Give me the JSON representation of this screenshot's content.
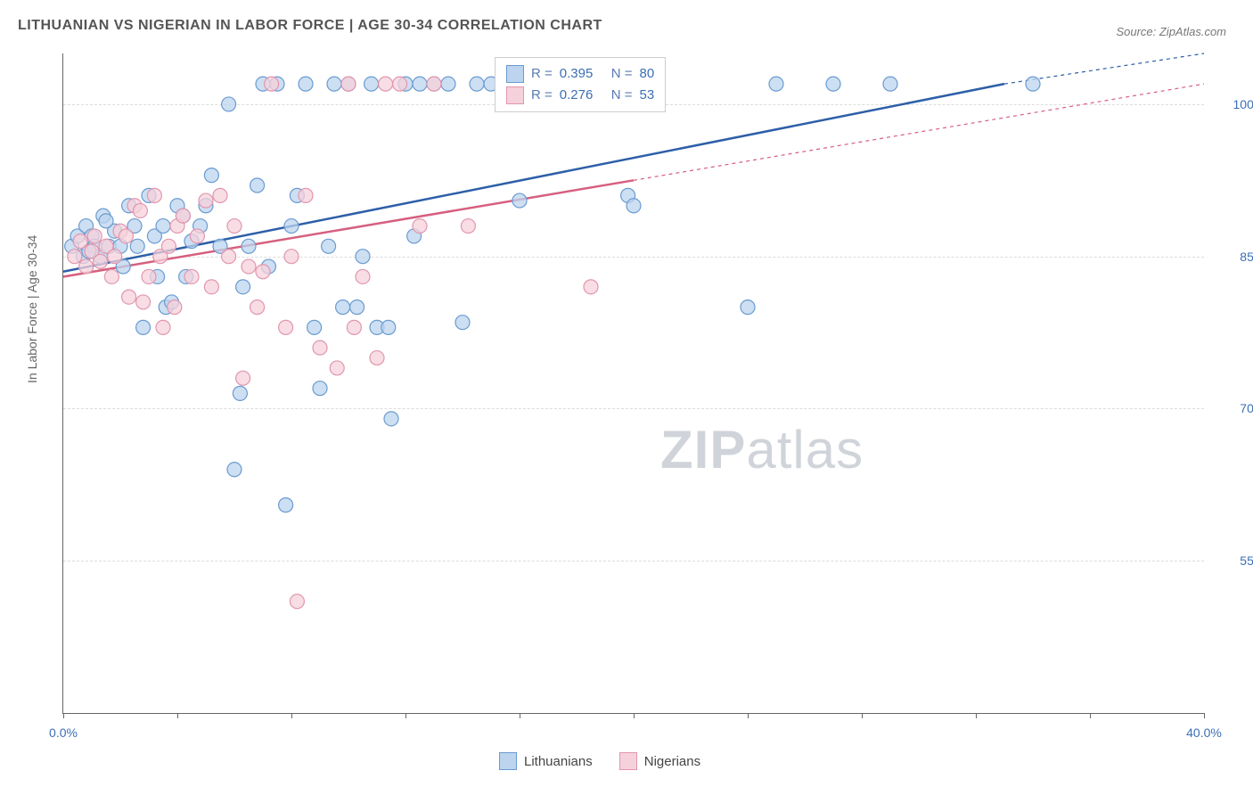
{
  "title": "LITHUANIAN VS NIGERIAN IN LABOR FORCE | AGE 30-34 CORRELATION CHART",
  "source": "Source: ZipAtlas.com",
  "y_axis_label": "In Labor Force | Age 30-34",
  "watermark_bold": "ZIP",
  "watermark_light": "atlas",
  "chart": {
    "type": "scatter",
    "xlim": [
      0,
      40
    ],
    "ylim": [
      40,
      105
    ],
    "x_ticks": [
      0,
      4,
      8,
      12,
      16,
      20,
      24,
      28,
      32,
      36,
      40
    ],
    "x_tick_labels": {
      "0": "0.0%",
      "40": "40.0%"
    },
    "y_ticks": [
      55,
      70,
      85,
      100
    ],
    "y_tick_labels": {
      "55": "55.0%",
      "70": "70.0%",
      "85": "85.0%",
      "100": "100.0%"
    },
    "grid_color": "#dcdcdc",
    "axis_color": "#666666",
    "background_color": "#ffffff",
    "marker_radius": 8,
    "marker_stroke_width": 1.2,
    "series": [
      {
        "name": "Lithuanians",
        "fill_color": "#bcd4ee",
        "stroke_color": "#6a9bd1",
        "line_color": "#2d5fa8",
        "line_width": 2.5,
        "R": "0.395",
        "N": "80",
        "regression": {
          "x1": 0,
          "y1": 83.5,
          "x2": 33,
          "y2": 102,
          "dash_x1": 33,
          "dash_y1": 102,
          "dash_x2": 40,
          "dash_y2": 105
        },
        "points": [
          [
            0.3,
            86
          ],
          [
            0.5,
            87
          ],
          [
            0.7,
            85
          ],
          [
            0.8,
            88
          ],
          [
            1.0,
            87
          ],
          [
            1.1,
            86
          ],
          [
            1.3,
            85
          ],
          [
            1.4,
            89
          ],
          [
            1.6,
            86
          ],
          [
            1.8,
            87.5
          ],
          [
            0.9,
            85.5
          ],
          [
            1.5,
            88.5
          ],
          [
            2.0,
            86
          ],
          [
            2.1,
            84
          ],
          [
            2.3,
            90
          ],
          [
            2.5,
            88
          ],
          [
            2.6,
            86
          ],
          [
            2.8,
            78
          ],
          [
            3.0,
            91
          ],
          [
            3.2,
            87
          ],
          [
            3.3,
            83
          ],
          [
            3.5,
            88
          ],
          [
            3.6,
            80
          ],
          [
            3.8,
            80.5
          ],
          [
            4.0,
            90
          ],
          [
            4.2,
            89
          ],
          [
            4.3,
            83
          ],
          [
            4.5,
            86.5
          ],
          [
            4.8,
            88
          ],
          [
            5.0,
            90
          ],
          [
            5.2,
            93
          ],
          [
            5.5,
            86
          ],
          [
            5.8,
            100
          ],
          [
            6.0,
            64
          ],
          [
            6.2,
            71.5
          ],
          [
            6.3,
            82
          ],
          [
            6.5,
            86
          ],
          [
            6.8,
            92
          ],
          [
            7.0,
            102
          ],
          [
            7.2,
            84
          ],
          [
            7.5,
            102
          ],
          [
            7.8,
            60.5
          ],
          [
            8.0,
            88
          ],
          [
            8.2,
            91
          ],
          [
            8.5,
            102
          ],
          [
            8.8,
            78
          ],
          [
            9.0,
            72
          ],
          [
            9.3,
            86
          ],
          [
            9.5,
            102
          ],
          [
            9.8,
            80
          ],
          [
            10.0,
            102
          ],
          [
            10.3,
            80
          ],
          [
            10.5,
            85
          ],
          [
            10.8,
            102
          ],
          [
            11.0,
            78
          ],
          [
            11.4,
            78
          ],
          [
            11.5,
            69
          ],
          [
            12.0,
            102
          ],
          [
            12.3,
            87
          ],
          [
            12.5,
            102
          ],
          [
            13.0,
            102
          ],
          [
            13.5,
            102
          ],
          [
            14.0,
            78.5
          ],
          [
            14.5,
            102
          ],
          [
            15.0,
            102
          ],
          [
            15.5,
            102
          ],
          [
            16.0,
            90.5
          ],
          [
            16.4,
            102
          ],
          [
            17.2,
            102
          ],
          [
            18.0,
            102
          ],
          [
            18.5,
            102
          ],
          [
            19.0,
            102
          ],
          [
            19.8,
            91
          ],
          [
            20.0,
            90
          ],
          [
            20.3,
            102
          ],
          [
            24.0,
            80
          ],
          [
            25.0,
            102
          ],
          [
            27.0,
            102
          ],
          [
            29.0,
            102
          ],
          [
            34.0,
            102
          ]
        ]
      },
      {
        "name": "Nigerians",
        "fill_color": "#f5d1db",
        "stroke_color": "#e196ae",
        "line_color": "#d65f7f",
        "line_width": 2.5,
        "R": "0.276",
        "N": "53",
        "regression": {
          "x1": 0,
          "y1": 83,
          "x2": 20,
          "y2": 92.5,
          "dash_x1": 20,
          "dash_y1": 92.5,
          "dash_x2": 40,
          "dash_y2": 102
        },
        "points": [
          [
            0.4,
            85
          ],
          [
            0.6,
            86.5
          ],
          [
            0.8,
            84
          ],
          [
            1.0,
            85.5
          ],
          [
            1.1,
            87
          ],
          [
            1.3,
            84.5
          ],
          [
            1.5,
            86
          ],
          [
            1.7,
            83
          ],
          [
            1.8,
            85
          ],
          [
            2.0,
            87.5
          ],
          [
            2.2,
            87
          ],
          [
            2.3,
            81
          ],
          [
            2.5,
            90
          ],
          [
            2.7,
            89.5
          ],
          [
            2.8,
            80.5
          ],
          [
            3.0,
            83
          ],
          [
            3.2,
            91
          ],
          [
            3.4,
            85
          ],
          [
            3.5,
            78
          ],
          [
            3.7,
            86
          ],
          [
            3.9,
            80
          ],
          [
            4.0,
            88
          ],
          [
            4.2,
            89
          ],
          [
            4.5,
            83
          ],
          [
            4.7,
            87
          ],
          [
            5.0,
            90.5
          ],
          [
            5.2,
            82
          ],
          [
            5.5,
            91
          ],
          [
            5.8,
            85
          ],
          [
            6.0,
            88
          ],
          [
            6.3,
            73
          ],
          [
            6.5,
            84
          ],
          [
            6.8,
            80
          ],
          [
            7.0,
            83.5
          ],
          [
            7.3,
            102
          ],
          [
            7.8,
            78
          ],
          [
            8.0,
            85
          ],
          [
            8.2,
            51
          ],
          [
            8.5,
            91
          ],
          [
            9.0,
            76
          ],
          [
            9.6,
            74
          ],
          [
            10.0,
            102
          ],
          [
            10.2,
            78
          ],
          [
            10.5,
            83
          ],
          [
            11.0,
            75
          ],
          [
            11.3,
            102
          ],
          [
            11.8,
            102
          ],
          [
            12.5,
            88
          ],
          [
            13.0,
            102
          ],
          [
            14.2,
            88
          ],
          [
            17.0,
            102
          ],
          [
            18.5,
            82
          ],
          [
            20.0,
            102
          ]
        ]
      }
    ],
    "legend_top": {
      "R_label": "R =",
      "N_label": "N ="
    },
    "legend_bottom": {
      "items": [
        "Lithuanians",
        "Nigerians"
      ]
    }
  }
}
